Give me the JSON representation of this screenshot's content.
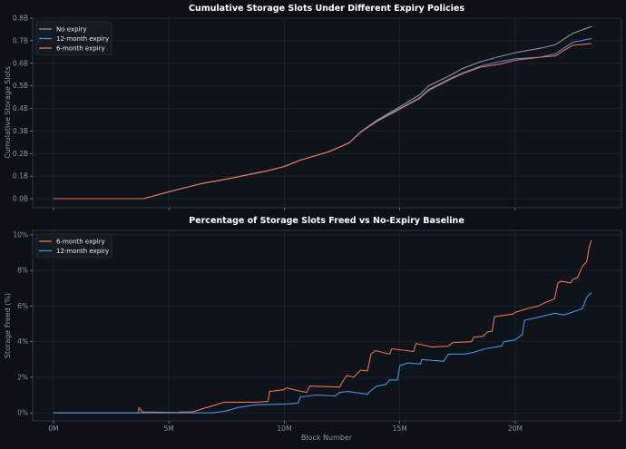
{
  "colors": {
    "background": "#0d1117",
    "no_expiry": "#8b949e",
    "12_month": "#4a90e2",
    "6_month": "#e8734f"
  },
  "chart_data": [
    {
      "type": "line",
      "title": "Cumulative Storage Slots Under Different Expiry Policies",
      "xlabel": "",
      "ylabel": "Cumulative Storage Slots",
      "xlim": [
        -0.9,
        24.6
      ],
      "ylim": [
        -0.04,
        0.8
      ],
      "x_ticks": [
        0,
        5,
        10,
        15,
        20
      ],
      "y_ticks": [
        0,
        0.1,
        0.2,
        0.3,
        0.4,
        0.5,
        0.6,
        0.7,
        0.8
      ],
      "y_tick_labels": [
        "0.0B",
        "0.1B",
        "0.2B",
        "0.3B",
        "0.4B",
        "0.5B",
        "0.6B",
        "0.7B",
        "0.8B"
      ],
      "grid": true,
      "legend": "top-left",
      "series": [
        {
          "name": "No expiry",
          "color": "#8b949e",
          "x": [
            0,
            3.9,
            5.35,
            6.5,
            7.3,
            9.29,
            10,
            10.7,
            11.9,
            12.8,
            13.35,
            14,
            15,
            15.85,
            16.25,
            17.2,
            17.7,
            18.5,
            19.3,
            20,
            21.1,
            21.76,
            22.1,
            22.5,
            23.3
          ],
          "y": [
            0,
            0,
            0.04,
            0.069,
            0.083,
            0.124,
            0.143,
            0.171,
            0.207,
            0.247,
            0.3,
            0.347,
            0.407,
            0.46,
            0.5,
            0.547,
            0.576,
            0.607,
            0.629,
            0.647,
            0.667,
            0.683,
            0.707,
            0.733,
            0.763
          ]
        },
        {
          "name": "12-month expiry",
          "color": "#4a90e2",
          "x": [
            0,
            3.9,
            5.35,
            6.5,
            7.3,
            9.29,
            10,
            10.7,
            11.9,
            12.8,
            13.35,
            14,
            15,
            15.85,
            16.25,
            17.2,
            17.7,
            18.5,
            19.3,
            20,
            21.1,
            21.76,
            22.1,
            22.5,
            23.3
          ],
          "y": [
            0,
            0,
            0.04,
            0.069,
            0.083,
            0.124,
            0.143,
            0.171,
            0.207,
            0.247,
            0.3,
            0.345,
            0.4,
            0.447,
            0.484,
            0.533,
            0.556,
            0.587,
            0.607,
            0.62,
            0.627,
            0.643,
            0.667,
            0.693,
            0.71
          ]
        },
        {
          "name": "6-month expiry",
          "color": "#e8734f",
          "x": [
            0,
            3.9,
            5.35,
            6.5,
            7.3,
            9.29,
            10,
            10.7,
            11.9,
            12.8,
            13.35,
            14,
            15,
            15.85,
            16.25,
            17.2,
            17.7,
            18.5,
            19.3,
            20,
            21.1,
            21.76,
            22.1,
            22.5,
            23.3
          ],
          "y": [
            0,
            0,
            0.04,
            0.069,
            0.083,
            0.124,
            0.143,
            0.171,
            0.207,
            0.247,
            0.298,
            0.342,
            0.397,
            0.444,
            0.48,
            0.53,
            0.553,
            0.583,
            0.596,
            0.613,
            0.627,
            0.633,
            0.657,
            0.68,
            0.687
          ]
        }
      ]
    },
    {
      "type": "line",
      "title": "Percentage of Storage Slots Freed vs No-Expiry Baseline",
      "xlabel": "Block Number",
      "ylabel": "Storage Freed (%)",
      "xlim": [
        -0.9,
        24.6
      ],
      "ylim": [
        -0.45,
        10.25
      ],
      "x_ticks": [
        0,
        5,
        10,
        15,
        20
      ],
      "x_tick_labels": [
        "0M",
        "5M",
        "10M",
        "15M",
        "20M"
      ],
      "y_ticks": [
        0,
        2,
        4,
        6,
        8,
        10
      ],
      "y_tick_labels": [
        "0%",
        "2%",
        "4%",
        "6%",
        "8%",
        "10%"
      ],
      "grid": true,
      "legend": "top-left",
      "series": [
        {
          "name": "6-month expiry",
          "color": "#e8734f",
          "x": [
            0,
            3.68,
            3.7,
            3.85,
            5.4,
            5.5,
            6.0,
            6.15,
            6.5,
            6.9,
            7.4,
            8.8,
            9.3,
            9.36,
            9.97,
            10.1,
            10.75,
            10.97,
            11.1,
            12.4,
            12.5,
            12.7,
            13.0,
            13.3,
            13.6,
            13.75,
            13.95,
            14.56,
            14.65,
            15.6,
            15.7,
            16.4,
            17.1,
            17.3,
            18.1,
            18.2,
            18.6,
            18.8,
            19.0,
            19.1,
            19.9,
            20.0,
            20.5,
            21.0,
            21.3,
            21.7,
            21.85,
            22.0,
            22.4,
            22.5,
            22.7,
            22.9,
            23.1,
            23.2,
            23.3
          ],
          "y": [
            0,
            0,
            0.3,
            0.05,
            0.02,
            0.05,
            0.05,
            0.1,
            0.25,
            0.4,
            0.6,
            0.6,
            0.65,
            1.2,
            1.3,
            1.4,
            1.2,
            1.15,
            1.5,
            1.45,
            1.7,
            2.1,
            2.0,
            2.4,
            2.35,
            3.3,
            3.5,
            3.3,
            3.6,
            3.45,
            3.9,
            3.7,
            3.75,
            3.95,
            4.0,
            4.25,
            4.3,
            4.55,
            4.6,
            5.4,
            5.55,
            5.65,
            5.85,
            6.0,
            6.2,
            6.4,
            7.3,
            7.4,
            7.3,
            7.5,
            7.6,
            8.2,
            8.5,
            9.3,
            9.7
          ]
        },
        {
          "name": "12-month expiry",
          "color": "#4a90e2",
          "x": [
            0,
            6.9,
            7.45,
            8.0,
            8.75,
            10.0,
            10.6,
            10.7,
            11.4,
            12.2,
            12.4,
            12.75,
            13.6,
            13.7,
            14.0,
            14.4,
            14.56,
            14.9,
            15.0,
            15.35,
            15.9,
            15.95,
            16.4,
            16.9,
            17.1,
            17.8,
            18.2,
            18.7,
            19.4,
            19.5,
            20.0,
            20.3,
            20.4,
            21.1,
            21.7,
            22.1,
            22.45,
            22.9,
            23.1,
            23.3
          ],
          "y": [
            0,
            0,
            0.1,
            0.3,
            0.45,
            0.5,
            0.55,
            0.9,
            1.0,
            0.95,
            1.15,
            1.2,
            1.05,
            1.2,
            1.5,
            1.6,
            1.85,
            1.85,
            2.65,
            2.8,
            2.75,
            3.0,
            2.95,
            2.9,
            3.3,
            3.3,
            3.4,
            3.6,
            3.75,
            4.0,
            4.1,
            4.4,
            5.2,
            5.4,
            5.6,
            5.5,
            5.65,
            5.85,
            6.5,
            6.75
          ]
        }
      ]
    }
  ]
}
